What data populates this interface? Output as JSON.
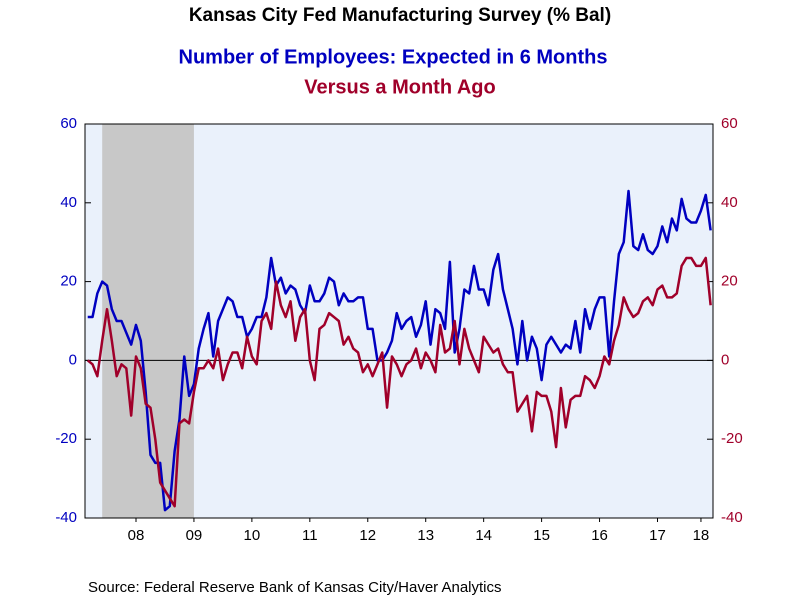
{
  "chart_data": {
    "type": "line",
    "title": "Kansas City Fed Manufacturing Survey (% Bal)",
    "subtitle": "Number of Employees: Expected in 6 Months",
    "subtitle2": "Versus a Month Ago",
    "source": "Source:  Federal Reserve Bank of Kansas City/Haver Analytics",
    "x": [
      2007.667,
      2007.75,
      2007.833,
      2007.917,
      2008,
      2008.083,
      2008.167,
      2008.25,
      2008.333,
      2008.417,
      2008.5,
      2008.583,
      2008.667,
      2008.75,
      2008.833,
      2008.917,
      2009,
      2009.083,
      2009.167,
      2009.25,
      2009.333,
      2009.417,
      2009.5,
      2009.583,
      2009.667,
      2009.75,
      2009.833,
      2009.917,
      2010,
      2010.083,
      2010.167,
      2010.25,
      2010.333,
      2010.417,
      2010.5,
      2010.583,
      2010.667,
      2010.75,
      2010.833,
      2010.917,
      2011,
      2011.083,
      2011.167,
      2011.25,
      2011.333,
      2011.417,
      2011.5,
      2011.583,
      2011.667,
      2011.75,
      2011.833,
      2011.917,
      2012,
      2012.083,
      2012.167,
      2012.25,
      2012.333,
      2012.417,
      2012.5,
      2012.583,
      2012.667,
      2012.75,
      2012.833,
      2012.917,
      2013,
      2013.083,
      2013.167,
      2013.25,
      2013.333,
      2013.417,
      2013.5,
      2013.583,
      2013.667,
      2013.75,
      2013.833,
      2013.917,
      2014,
      2014.083,
      2014.167,
      2014.25,
      2014.333,
      2014.417,
      2014.5,
      2014.583,
      2014.667,
      2014.75,
      2014.833,
      2014.917,
      2015,
      2015.083,
      2015.167,
      2015.25,
      2015.333,
      2015.417,
      2015.5,
      2015.583,
      2015.667,
      2015.75,
      2015.833,
      2015.917,
      2016,
      2016.083,
      2016.167,
      2016.25,
      2016.333,
      2016.417,
      2016.5,
      2016.583,
      2016.667,
      2016.75,
      2016.833,
      2016.917,
      2017,
      2017.083,
      2017.167,
      2017.25,
      2017.333,
      2017.417,
      2017.5,
      2017.583,
      2017.667,
      2017.75,
      2017.833,
      2017.917,
      2018,
      2018.083,
      2018.167,
      2018.25,
      2018.333,
      2018.417
    ],
    "series": [
      {
        "name": "Number of Employees: Expected in 6 Months",
        "color": "#0000c0",
        "axis": "y",
        "values": [
          11,
          11,
          17,
          20,
          19,
          13,
          10,
          10,
          7,
          4,
          9,
          5,
          -8,
          -24,
          -26,
          -26,
          -38,
          -37,
          -23,
          -15,
          1,
          -9,
          -6,
          3,
          8,
          12,
          1,
          10,
          13,
          16,
          15,
          11,
          11,
          6,
          8,
          11,
          11,
          16,
          26,
          19,
          21,
          17,
          19,
          18,
          14,
          12,
          19,
          15,
          15,
          17,
          21,
          20,
          14,
          17,
          15,
          15,
          16,
          16,
          8,
          8,
          0,
          0,
          2,
          5,
          12,
          8,
          10,
          11,
          6,
          9,
          15,
          4,
          13,
          12,
          8,
          25,
          2,
          8,
          18,
          17,
          24,
          18,
          18,
          14,
          23,
          27,
          18,
          13,
          8,
          -1,
          10,
          0,
          6,
          3,
          -5,
          4,
          6,
          4,
          2,
          4,
          3,
          10,
          2,
          13,
          8,
          13,
          16,
          16,
          1,
          15,
          27,
          30,
          43,
          29,
          28,
          32,
          28,
          27,
          29,
          34,
          30,
          36,
          33,
          41,
          36,
          35,
          35,
          38,
          42,
          33
        ]
      },
      {
        "name": "Versus a Month Ago",
        "color": "#a0002a",
        "axis": "y2",
        "values": [
          0,
          -1,
          -4,
          5,
          13,
          5,
          -4,
          -1,
          -2,
          -14,
          1,
          -2,
          -11,
          -12,
          -20,
          -31,
          -33,
          -35,
          -37,
          -16,
          -15,
          -16,
          -8,
          -2,
          -2,
          0,
          -2,
          3,
          -5,
          -1,
          2,
          2,
          -2,
          6,
          1,
          -1,
          10,
          12,
          8,
          20,
          14,
          11,
          15,
          5,
          11,
          13,
          0,
          -5,
          8,
          9,
          12,
          11,
          10,
          4,
          6,
          3,
          2,
          -3,
          -1,
          -4,
          -1,
          2,
          -12,
          1,
          -1,
          -4,
          -1,
          0,
          3,
          -2,
          2,
          0,
          -3,
          9,
          2,
          3,
          10,
          -1,
          8,
          3,
          0,
          -3,
          6,
          4,
          2,
          3,
          -1,
          -3,
          -3,
          -13,
          -11,
          -9,
          -18,
          -8,
          -9,
          -9,
          -13,
          -22,
          -7,
          -17,
          -10,
          -9,
          -9,
          -4,
          -5,
          -7,
          -4,
          1,
          -1,
          5,
          9,
          16,
          13,
          11,
          12,
          15,
          16,
          14,
          18,
          19,
          16,
          16,
          17,
          24,
          26,
          26,
          24,
          24,
          26,
          14
        ]
      }
    ],
    "xlim": [
      2007.62,
      2018.458
    ],
    "xticks": [
      {
        "value": 2008.5,
        "label": "08"
      },
      {
        "value": 2009.5,
        "label": "09"
      },
      {
        "value": 2010.5,
        "label": "10"
      },
      {
        "value": 2011.5,
        "label": "11"
      },
      {
        "value": 2012.5,
        "label": "12"
      },
      {
        "value": 2013.5,
        "label": "13"
      },
      {
        "value": 2014.5,
        "label": "14"
      },
      {
        "value": 2015.5,
        "label": "15"
      },
      {
        "value": 2016.5,
        "label": "16"
      },
      {
        "value": 2017.5,
        "label": "17"
      },
      {
        "value": 2018.25,
        "label": "18"
      }
    ],
    "ylim": [
      -40,
      60
    ],
    "yticks": [
      -40,
      -20,
      0,
      20,
      40,
      60
    ],
    "y2lim": [
      -40,
      60
    ],
    "y2ticks": [
      -40,
      -20,
      0,
      20,
      40,
      60
    ],
    "recession": [
      2007.917,
      2009.5
    ]
  }
}
